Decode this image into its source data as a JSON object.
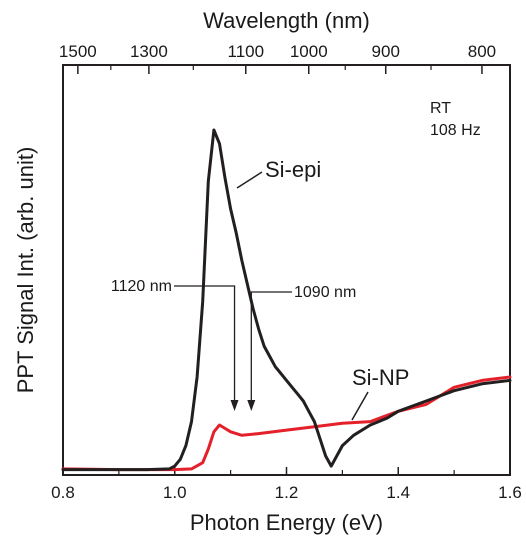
{
  "chart_data": {
    "type": "line",
    "xlabel": "Photon Energy (eV)",
    "ylabel": "PPT Signal Int. (arb. unit)",
    "x2label": "Wavelength (nm)",
    "xlim": [
      0.8,
      1.6
    ],
    "ylim": [
      0,
      1
    ],
    "xticks": [
      0.8,
      1.0,
      1.2,
      1.4,
      1.6
    ],
    "xtick_labels": [
      "0.8",
      "1.0",
      "1.2",
      "1.4",
      "1.6"
    ],
    "top_ticks_nm": [
      1500,
      1300,
      1100,
      1000,
      900,
      800
    ],
    "top_tick_labels": [
      "1500",
      "1300",
      "1100",
      "1000",
      "900",
      "800"
    ],
    "conditions": [
      "RT",
      "108 Hz"
    ],
    "annotations": [
      {
        "text": "1120 nm",
        "x": 1.107
      },
      {
        "text": "1090 nm",
        "x": 1.137
      }
    ],
    "series": [
      {
        "name": "Si-epi",
        "color": "#231f20",
        "x": [
          0.8,
          0.9,
          0.95,
          0.99,
          1.0,
          1.01,
          1.02,
          1.03,
          1.04,
          1.05,
          1.06,
          1.07,
          1.08,
          1.09,
          1.1,
          1.11,
          1.12,
          1.13,
          1.14,
          1.15,
          1.16,
          1.17,
          1.18,
          1.19,
          1.2,
          1.21,
          1.22,
          1.23,
          1.24,
          1.25,
          1.26,
          1.27,
          1.28,
          1.29,
          1.3,
          1.32,
          1.35,
          1.38,
          1.4,
          1.45,
          1.5,
          1.55,
          1.6
        ],
        "y": [
          0.01,
          0.01,
          0.01,
          0.012,
          0.02,
          0.04,
          0.08,
          0.15,
          0.28,
          0.5,
          0.85,
          1.0,
          0.96,
          0.86,
          0.77,
          0.7,
          0.62,
          0.55,
          0.48,
          0.42,
          0.37,
          0.34,
          0.31,
          0.29,
          0.27,
          0.25,
          0.23,
          0.21,
          0.18,
          0.15,
          0.1,
          0.05,
          0.02,
          0.05,
          0.08,
          0.11,
          0.14,
          0.16,
          0.18,
          0.21,
          0.24,
          0.26,
          0.27
        ]
      },
      {
        "name": "Si-NP",
        "color": "#e4202a",
        "x": [
          0.8,
          0.9,
          0.95,
          1.0,
          1.03,
          1.05,
          1.06,
          1.07,
          1.08,
          1.09,
          1.1,
          1.12,
          1.15,
          1.2,
          1.25,
          1.3,
          1.35,
          1.4,
          1.45,
          1.5,
          1.55,
          1.6
        ],
        "y": [
          0.012,
          0.01,
          0.01,
          0.01,
          0.012,
          0.03,
          0.07,
          0.12,
          0.14,
          0.13,
          0.12,
          0.11,
          0.115,
          0.125,
          0.135,
          0.145,
          0.15,
          0.18,
          0.2,
          0.25,
          0.27,
          0.28
        ]
      }
    ]
  }
}
